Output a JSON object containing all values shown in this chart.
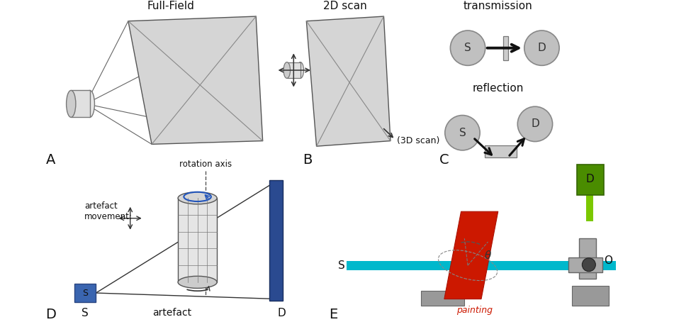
{
  "background_color": "#ffffff",
  "label_A": "A",
  "label_B": "B",
  "label_C": "C",
  "label_D": "D",
  "label_E": "E",
  "title_A": "Full-Field",
  "title_B": "2D scan",
  "title_C_top": "transmission",
  "title_C_bot": "reflection",
  "label_3D": "(3D scan)",
  "label_rotation": "rotation axis",
  "label_artefact_move": "artefact\nmovement:",
  "label_artefact": "artefact",
  "label_painting": "painting",
  "color_light_gray": "#d0d0d0",
  "color_mid_gray": "#b0b0b0",
  "color_dark": "#333333",
  "color_blue_src": "#3d6db5",
  "color_det_blue": "#2a4a8a",
  "color_green": "#4a8c00",
  "color_cyan": "#00b8cc",
  "color_red_paint": "#cc1800"
}
